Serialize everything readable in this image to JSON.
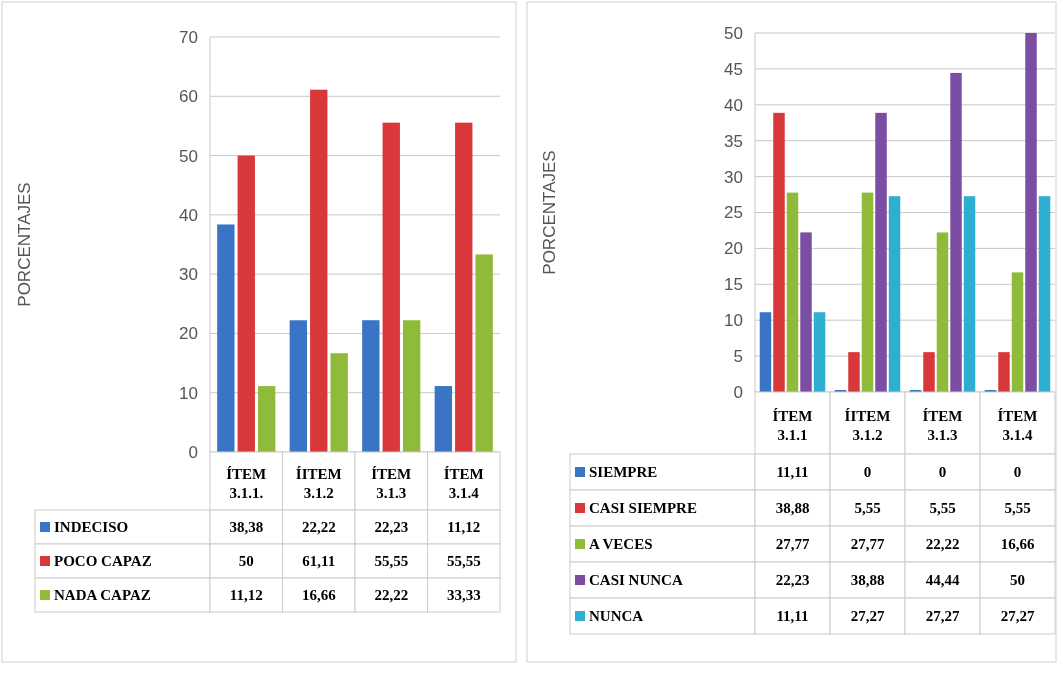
{
  "chart_data": [
    {
      "type": "bar",
      "ylabel": "PORCENTAJES",
      "categories": [
        "ÍTEM 3.1.1.",
        "ÍITEM 3.1.2",
        "ÍTEM 3.1.3",
        "ÍTEM 3.1.4"
      ],
      "ylim": [
        0,
        70
      ],
      "yticks": [
        0,
        10,
        20,
        30,
        40,
        50,
        60,
        70
      ],
      "grid": "y",
      "legend": "bottom",
      "series": [
        {
          "name": "INDECISO",
          "color": "#3a74c4",
          "values": [
            38.38,
            22.22,
            22.23,
            11.12
          ],
          "value_labels": [
            "38,38",
            "22,22",
            "22,23",
            "11,12"
          ]
        },
        {
          "name": "POCO CAPAZ",
          "color": "#d9383a",
          "values": [
            50,
            61.11,
            55.55,
            55.55
          ],
          "value_labels": [
            "50",
            "61,11",
            "55,55",
            "55,55"
          ]
        },
        {
          "name": "NADA CAPAZ",
          "color": "#8fba3a",
          "values": [
            11.12,
            16.66,
            22.22,
            33.33
          ],
          "value_labels": [
            "11,12",
            "16,66",
            "22,22",
            "33,33"
          ]
        }
      ]
    },
    {
      "type": "bar",
      "ylabel": "PORCENTAJES",
      "categories": [
        "ÍTEM 3.1.1",
        "ÍITEM 3.1.2",
        "ÍTEM 3.1.3",
        "ÍTEM 3.1.4"
      ],
      "ylim": [
        0,
        50
      ],
      "yticks": [
        0,
        5,
        10,
        15,
        20,
        25,
        30,
        35,
        40,
        45,
        50
      ],
      "grid": "y",
      "legend": "bottom",
      "series": [
        {
          "name": "SIEMPRE",
          "color": "#3a74c4",
          "values": [
            11.11,
            0,
            0,
            0
          ],
          "value_labels": [
            "11,11",
            "0",
            "0",
            "0"
          ]
        },
        {
          "name": "CASI SIEMPRE",
          "color": "#d9383a",
          "values": [
            38.88,
            5.55,
            5.55,
            5.55
          ],
          "value_labels": [
            "38,88",
            "5,55",
            "5,55",
            "5,55"
          ]
        },
        {
          "name": "A VECES",
          "color": "#8fba3a",
          "values": [
            27.77,
            27.77,
            22.22,
            16.66
          ],
          "value_labels": [
            "27,77",
            "27,77",
            "22,22",
            "16,66"
          ]
        },
        {
          "name": "CASI NUNCA",
          "color": "#7b4ea3",
          "values": [
            22.23,
            38.88,
            44.44,
            50
          ],
          "value_labels": [
            "22,23",
            "38,88",
            "44,44",
            "50"
          ]
        },
        {
          "name": "NUNCA",
          "color": "#2eaed0",
          "values": [
            11.11,
            27.27,
            27.27,
            27.27
          ],
          "value_labels": [
            "11,11",
            "27,27",
            "27,27",
            "27,27"
          ]
        }
      ]
    }
  ]
}
